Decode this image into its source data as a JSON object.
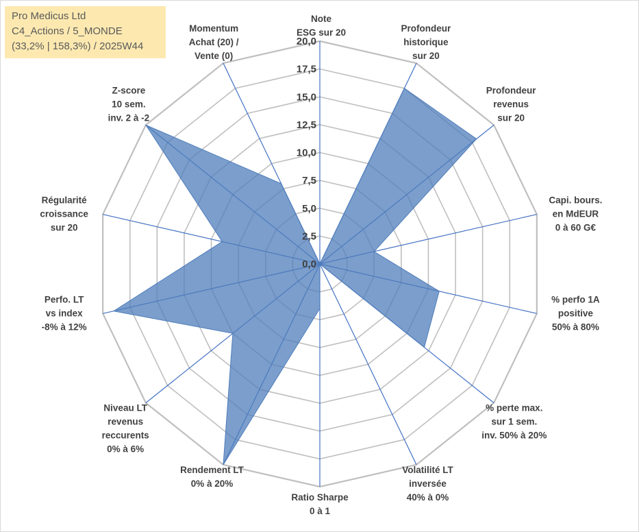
{
  "header": {
    "company": "Pro Medicus Ltd",
    "category": "C4_Actions / 5_MONDE",
    "stats": "(33,2% | 158,3%) / 2025W44"
  },
  "colors": {
    "grid": "#bfbfbf",
    "spoke": "#4472c4",
    "fill": "#4f7dbb",
    "fill_opacity": 0.75,
    "text": "#404040",
    "header_bg": "#fde9b0"
  },
  "chart_data": {
    "type": "radar",
    "title": "",
    "range": [
      0,
      20
    ],
    "ticks": [
      "0,0",
      "2,5",
      "5,0",
      "7,5",
      "10,0",
      "12,5",
      "15,0",
      "17,5",
      "20,0"
    ],
    "tick_values": [
      0,
      2.5,
      5,
      7.5,
      10,
      12.5,
      15,
      17.5,
      20
    ],
    "axes": [
      {
        "lines": [
          "Note",
          "ESG sur 20"
        ],
        "value": 0
      },
      {
        "lines": [
          "Profondeur",
          "historique",
          "sur 20"
        ],
        "value": 17.5
      },
      {
        "lines": [
          "Profondeur",
          "revenus",
          "sur 20"
        ],
        "value": 18
      },
      {
        "lines": [
          "Capi. bours.",
          "en MdEUR",
          "0 à 60 G€"
        ],
        "value": 5
      },
      {
        "lines": [
          "% perfo 1A",
          "positive",
          "50% à 80%"
        ],
        "value": 11
      },
      {
        "lines": [
          "% perte max.",
          "sur 1 sem.",
          "inv. 50% à 20%"
        ],
        "value": 12
      },
      {
        "lines": [
          "Volatilité LT",
          "inversée",
          "40% à 0%"
        ],
        "value": 0
      },
      {
        "lines": [
          "Ratio Sharpe",
          "0 à 1"
        ],
        "value": 4
      },
      {
        "lines": [
          "Rendement LT",
          "0% à 20%"
        ],
        "value": 20
      },
      {
        "lines": [
          "Niveau LT",
          "revenus",
          "reccurents",
          "0% à 6%"
        ],
        "value": 10
      },
      {
        "lines": [
          "Perfo. LT",
          "vs index",
          "-8% à 12%"
        ],
        "value": 19
      },
      {
        "lines": [
          "Régularité",
          "croissance",
          "sur 20"
        ],
        "value": 9
      },
      {
        "lines": [
          "Z-score",
          "10 sem.",
          "inv. 2 à -2"
        ],
        "value": 20
      },
      {
        "lines": [
          "Momentum",
          "Achat (20) /",
          "Vente (0)"
        ],
        "value": 8
      }
    ]
  }
}
